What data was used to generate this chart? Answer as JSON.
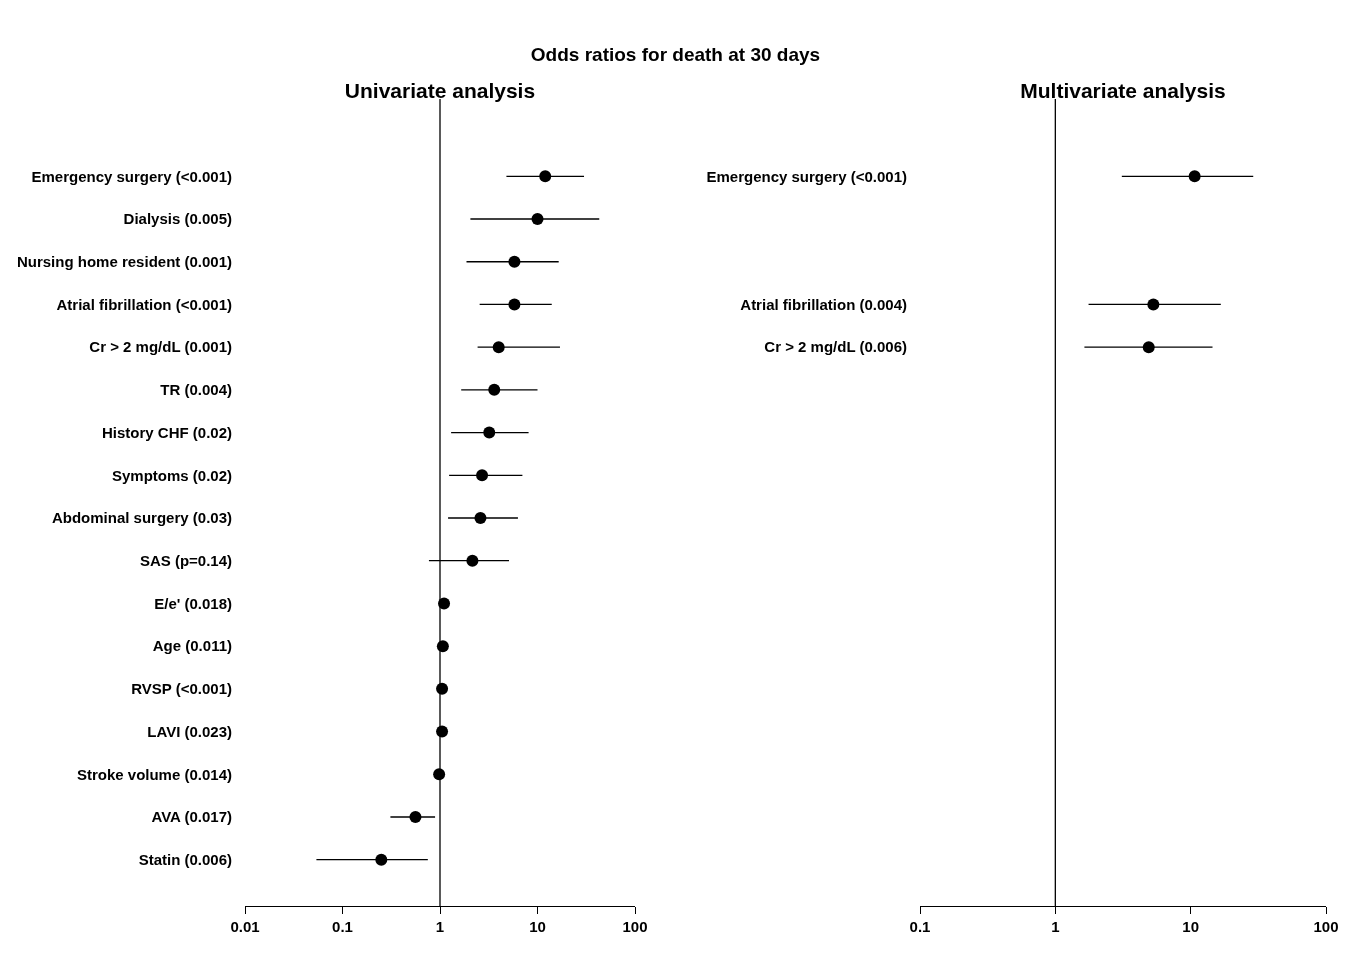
{
  "chart_data": [
    {
      "type": "scatter",
      "title": "Univariate analysis",
      "annotations": [
        "Odds ratios for death at 30 days"
      ],
      "categories": [
        "Emergency surgery (<0.001)",
        "Dialysis (0.005)",
        "Nursing home resident (0.001)",
        "Atrial fibrillation (<0.001)",
        "Cr > 2 mg/dL (0.001)",
        "TR (0.004)",
        "History CHF (0.02)",
        "Symptoms (0.02)",
        "Abdominal surgery (0.03)",
        "SAS (p=0.14)",
        "E/e' (0.018)",
        "Age (0.011)",
        "RVSP (<0.001)",
        "LAVI (0.023)",
        "Stroke volume (0.014)",
        "AVA (0.017)",
        "Statin (0.006)"
      ],
      "orientation": "horizontal",
      "series": [
        {
          "color": "#000000",
          "values": [
            12,
            10,
            5.8,
            5.8,
            4.0,
            3.6,
            3.2,
            2.7,
            2.6,
            2.15,
            1.1,
            1.07,
            1.05,
            1.05,
            0.98,
            0.56,
            0.25
          ],
          "errors": [
            [
              4.8,
              30
            ],
            [
              2.05,
              43
            ],
            [
              1.87,
              16.5
            ],
            [
              2.55,
              14
            ],
            [
              2.43,
              17
            ],
            [
              1.65,
              10
            ],
            [
              1.3,
              8.1
            ],
            [
              1.24,
              7.0
            ],
            [
              1.21,
              6.3
            ],
            [
              0.77,
              5.1
            ],
            null,
            [
              1.02,
              1.12
            ],
            [
              1.02,
              1.08
            ],
            [
              1.02,
              1.08
            ],
            [
              0.88,
              1.0
            ],
            [
              0.31,
              0.89
            ],
            [
              0.054,
              0.75
            ]
          ]
        }
      ],
      "log": "x",
      "xlim": [
        0.01,
        100
      ],
      "xticks": [
        0.01,
        0.1,
        1,
        10,
        100
      ],
      "marker": "circle",
      "ref_lines": [
        {
          "axis": "x",
          "value": 1
        }
      ]
    },
    {
      "type": "scatter",
      "title": "Multivariate analysis",
      "categories": [
        "Emergency surgery (<0.001)",
        null,
        null,
        "Atrial fibrillation (0.004)",
        "Cr > 2 mg/dL (0.006)",
        null,
        null,
        null,
        null,
        null,
        null,
        null,
        null,
        null,
        null,
        null,
        null
      ],
      "orientation": "horizontal",
      "series": [
        {
          "color": "#000000",
          "values": [
            10.7,
            null,
            null,
            5.3,
            4.9,
            null,
            null,
            null,
            null,
            null,
            null,
            null,
            null,
            null,
            null,
            null,
            null
          ],
          "errors": [
            [
              3.1,
              29
            ],
            null,
            null,
            [
              1.76,
              16.7
            ],
            [
              1.64,
              14.5
            ],
            null,
            null,
            null,
            null,
            null,
            null,
            null,
            null,
            null,
            null,
            null,
            null
          ]
        }
      ],
      "log": "x",
      "xlim": [
        0.1,
        100
      ],
      "xticks": [
        0.1,
        1,
        10,
        100
      ],
      "marker": "circle",
      "ref_lines": [
        {
          "axis": "x",
          "value": 1
        }
      ]
    }
  ]
}
